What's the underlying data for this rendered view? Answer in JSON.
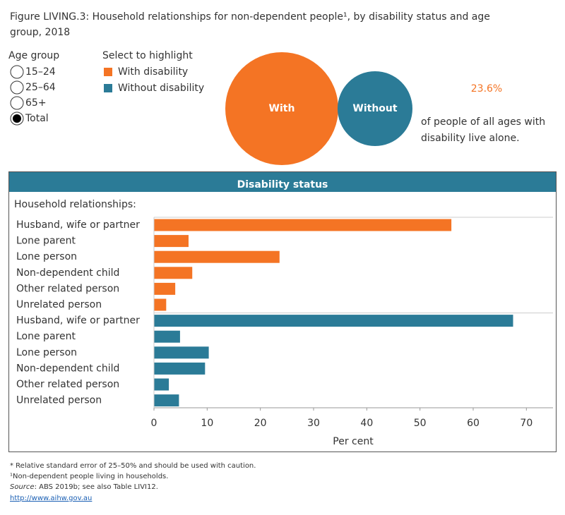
{
  "header": {
    "title_line1": "Figure LIVING.3: Household relationships for non-dependent people¹, by disability status and age",
    "title_line2": "group, 2018"
  },
  "age_filter": {
    "label": "Age group",
    "options": [
      "15–24",
      "25–64",
      "65+",
      "Total"
    ],
    "selected": 3
  },
  "highlight": {
    "label": "Select to highlight"
  },
  "bubbles": [
    "With",
    "Without"
  ],
  "callout": {
    "value": "23.6%",
    "text_line1": "of people of all ages with",
    "text_line2": "disability live alone."
  },
  "chart_data": {
    "type": "hbar",
    "title": "Disability status",
    "subtitle": "Household relationships:",
    "categories": [
      "Husband, wife or partner",
      "Lone parent",
      "Lone person",
      "Non-dependent child",
      "Other related person",
      "Unrelated person"
    ],
    "series": [
      {
        "name": "With disability",
        "color": "#f47424",
        "values": [
          55.9,
          6.5,
          23.6,
          7.2,
          4.0,
          2.3
        ]
      },
      {
        "name": "Without disability",
        "color": "#2b7b97",
        "values": [
          67.5,
          4.9,
          10.3,
          9.6,
          2.8,
          4.7
        ]
      }
    ],
    "xlabel": "Per cent",
    "xlim": [
      0,
      75
    ],
    "xticks": [
      0,
      10,
      20,
      30,
      40,
      50,
      60,
      70
    ],
    "grid": false
  },
  "footnotes": {
    "note1": "* Relative standard error of 25–50% and should be used with caution.",
    "note2": "¹Non-dependent people living in households.",
    "source_label": "Source",
    "source_text": ": ABS 2019b; see also Table LIVI12.",
    "link": "http://www.aihw.gov.au"
  }
}
